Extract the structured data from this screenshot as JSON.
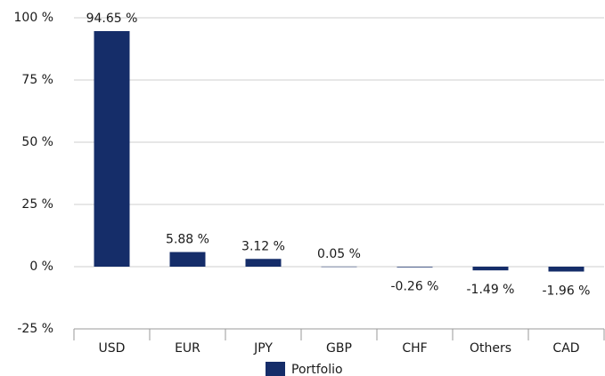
{
  "chart_data": {
    "type": "bar",
    "categories": [
      "USD",
      "EUR",
      "JPY",
      "GBP",
      "CHF",
      "Others",
      "CAD"
    ],
    "series": [
      {
        "name": "Portfolio",
        "color": "#152d69",
        "values": [
          94.65,
          5.88,
          3.12,
          0.05,
          -0.26,
          -1.49,
          -1.96
        ],
        "value_labels": [
          "94.65 %",
          "5.88 %",
          "3.12 %",
          "0.05 %",
          "-0.26 %",
          "-1.49 %",
          "-1.96 %"
        ]
      }
    ],
    "ylim": [
      -25,
      100
    ],
    "yticks": [
      {
        "value": -25,
        "label": "-25 %"
      },
      {
        "value": 0,
        "label": "0 %"
      },
      {
        "value": 25,
        "label": "25 %"
      },
      {
        "value": 50,
        "label": "50 %"
      },
      {
        "value": 75,
        "label": "75 %"
      },
      {
        "value": 100,
        "label": "100 %"
      }
    ],
    "grid": true,
    "legend": "bottom"
  }
}
